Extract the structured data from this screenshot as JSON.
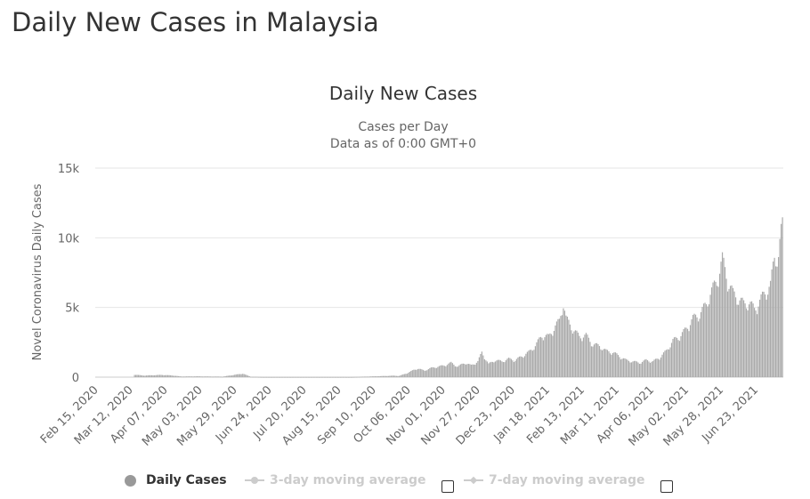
{
  "page": {
    "title": "Daily New Cases in Malaysia"
  },
  "legend": {
    "items": [
      {
        "label": "Daily Cases",
        "active": true
      },
      {
        "label": "3-day moving average",
        "active": false
      },
      {
        "label": "7-day moving average",
        "active": false
      }
    ]
  },
  "colors": {
    "bar": "#aaaaaa",
    "grid": "#e6e6e6",
    "text": "#333333",
    "legend_inactive": "#cccccc"
  },
  "chart_data": {
    "type": "bar",
    "title": "Daily New Cases",
    "subtitle_lines": [
      "Cases per Day",
      "Data as of 0:00 GMT+0"
    ],
    "ylabel": "Novel Coronavirus Daily Cases",
    "xlabel": "",
    "ylim": [
      0,
      15000
    ],
    "yticks": [
      {
        "value": 0,
        "label": "0"
      },
      {
        "value": 5000,
        "label": "5k"
      },
      {
        "value": 10000,
        "label": "10k"
      },
      {
        "value": 15000,
        "label": "15k"
      }
    ],
    "x_tick_labels": [
      "Feb 15, 2020",
      "Mar 12, 2020",
      "Apr 07, 2020",
      "May 03, 2020",
      "May 29, 2020",
      "Jun 24, 2020",
      "Jul 20, 2020",
      "Aug 15, 2020",
      "Sep 10, 2020",
      "Oct 06, 2020",
      "Nov 01, 2020",
      "Nov 27, 2020",
      "Dec 23, 2020",
      "Jan 18, 2021",
      "Feb 13, 2021",
      "Mar 11, 2021",
      "Apr 06, 2021",
      "May 02, 2021",
      "May 28, 2021",
      "Jun 23, 2021"
    ],
    "grid": true,
    "legend_position": "bottom",
    "series": [
      {
        "name": "Daily Cases",
        "x_start": "2020-02-15",
        "x_end": "2021-07-13",
        "points": [
          [
            "2020-03-15",
            190
          ],
          [
            "2020-03-22",
            120
          ],
          [
            "2020-03-29",
            150
          ],
          [
            "2020-04-05",
            170
          ],
          [
            "2020-04-12",
            130
          ],
          [
            "2020-04-19",
            50
          ],
          [
            "2020-05-01",
            60
          ],
          [
            "2020-05-09",
            50
          ],
          [
            "2020-05-20",
            40
          ],
          [
            "2020-06-04",
            270
          ],
          [
            "2020-06-10",
            30
          ],
          [
            "2020-06-20",
            10
          ],
          [
            "2020-07-10",
            10
          ],
          [
            "2020-08-01",
            10
          ],
          [
            "2020-08-25",
            10
          ],
          [
            "2020-09-10",
            60
          ],
          [
            "2020-09-25",
            110
          ],
          [
            "2020-09-29",
            90
          ],
          [
            "2020-10-02",
            200
          ],
          [
            "2020-10-05",
            300
          ],
          [
            "2020-10-10",
            550
          ],
          [
            "2020-10-13",
            660
          ],
          [
            "2020-10-18",
            500
          ],
          [
            "2020-10-23",
            700
          ],
          [
            "2020-10-28",
            800
          ],
          [
            "2020-11-02",
            900
          ],
          [
            "2020-11-07",
            1100
          ],
          [
            "2020-11-12",
            800
          ],
          [
            "2020-11-17",
            1100
          ],
          [
            "2020-11-22",
            900
          ],
          [
            "2020-11-27",
            1200
          ],
          [
            "2020-11-30",
            1900
          ],
          [
            "2020-12-05",
            1000
          ],
          [
            "2020-12-10",
            1300
          ],
          [
            "2020-12-15",
            1200
          ],
          [
            "2020-12-20",
            1400
          ],
          [
            "2020-12-25",
            1300
          ],
          [
            "2020-12-30",
            1600
          ],
          [
            "2021-01-04",
            1900
          ],
          [
            "2021-01-09",
            2400
          ],
          [
            "2021-01-14",
            3200
          ],
          [
            "2021-01-19",
            3100
          ],
          [
            "2021-01-24",
            3900
          ],
          [
            "2021-01-27",
            4300
          ],
          [
            "2021-01-30",
            5700
          ],
          [
            "2021-02-01",
            4500
          ],
          [
            "2021-02-06",
            3700
          ],
          [
            "2021-02-11",
            3100
          ],
          [
            "2021-02-16",
            3200
          ],
          [
            "2021-02-21",
            2500
          ],
          [
            "2021-02-26",
            2400
          ],
          [
            "2021-03-03",
            2000
          ],
          [
            "2021-03-08",
            1900
          ],
          [
            "2021-03-13",
            1600
          ],
          [
            "2021-03-18",
            1300
          ],
          [
            "2021-03-23",
            1200
          ],
          [
            "2021-03-28",
            1100
          ],
          [
            "2021-04-02",
            1300
          ],
          [
            "2021-04-07",
            1200
          ],
          [
            "2021-04-12",
            1500
          ],
          [
            "2021-04-17",
            2000
          ],
          [
            "2021-04-22",
            2800
          ],
          [
            "2021-04-27",
            3100
          ],
          [
            "2021-05-02",
            3700
          ],
          [
            "2021-05-07",
            4500
          ],
          [
            "2021-05-12",
            4800
          ],
          [
            "2021-05-17",
            5600
          ],
          [
            "2021-05-20",
            6400
          ],
          [
            "2021-05-25",
            7400
          ],
          [
            "2021-05-29",
            9000
          ],
          [
            "2021-06-02",
            7400
          ],
          [
            "2021-06-06",
            6400
          ],
          [
            "2021-06-10",
            6000
          ],
          [
            "2021-06-14",
            5600
          ],
          [
            "2021-06-18",
            5700
          ],
          [
            "2021-06-22",
            5200
          ],
          [
            "2021-06-26",
            5800
          ],
          [
            "2021-06-30",
            6500
          ],
          [
            "2021-07-04",
            7000
          ],
          [
            "2021-07-07",
            9200
          ],
          [
            "2021-07-10",
            9300
          ],
          [
            "2021-07-12",
            11000
          ],
          [
            "2021-07-13",
            11600
          ]
        ]
      }
    ]
  }
}
